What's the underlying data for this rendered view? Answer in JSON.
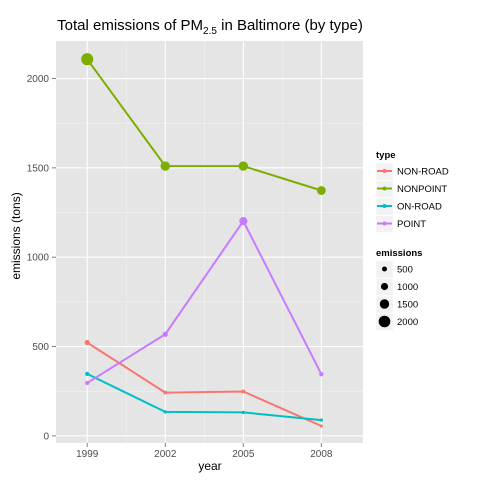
{
  "chart_data": {
    "type": "line",
    "title": "Total emissions of PM",
    "title_sub": "2.5",
    "title_suffix": " in Baltimore (by type)",
    "xlabel": "year",
    "ylabel": "emissions (tons)",
    "x": [
      1999,
      2002,
      2005,
      2008
    ],
    "x_tick_labels": [
      "1999",
      "2002",
      "2005",
      "2008"
    ],
    "xlim": [
      1997.8,
      2009.6
    ],
    "ylim": [
      -40,
      2210
    ],
    "y_ticks": [
      0,
      500,
      1000,
      1500,
      2000
    ],
    "y_tick_labels": [
      "0",
      "500",
      "1000",
      "1500",
      "2000"
    ],
    "grid": true,
    "background": "#e5e5e5",
    "series": [
      {
        "name": "NON-ROAD",
        "color": "#f8766d",
        "values": [
          522,
          242,
          248,
          55
        ]
      },
      {
        "name": "NONPOINT",
        "color": "#7cae00",
        "values": [
          2108,
          1510,
          1510,
          1373
        ]
      },
      {
        "name": "ON-ROAD",
        "color": "#00bfc4",
        "values": [
          347,
          134,
          131,
          88
        ]
      },
      {
        "name": "POINT",
        "color": "#c77cff",
        "values": [
          296,
          569,
          1202,
          345
        ]
      }
    ],
    "legend_placement": "right",
    "legend_type_title": "type",
    "legend_size_title": "emissions",
    "size_legend": [
      {
        "label": "500",
        "value": 500
      },
      {
        "label": "1000",
        "value": 1000
      },
      {
        "label": "1500",
        "value": 1500
      },
      {
        "label": "2000",
        "value": 2000
      }
    ]
  }
}
